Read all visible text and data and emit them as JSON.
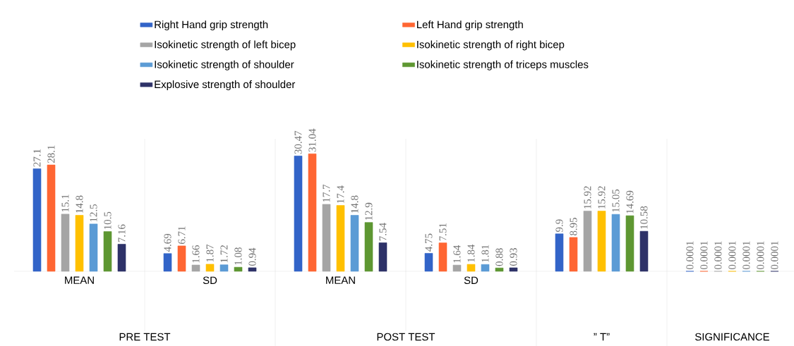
{
  "chart_data": {
    "type": "bar",
    "categories": [
      "MEAN",
      "SD",
      "MEAN",
      "SD",
      null,
      null
    ],
    "series": [
      {
        "name": "Right Hand grip strength",
        "color": "#3264c8",
        "values": [
          27.1,
          4.69,
          30.47,
          4.75,
          9.9,
          0.0001
        ]
      },
      {
        "name": "Left Hand grip strength",
        "color": "#ff6633",
        "values": [
          28.1,
          6.71,
          31.04,
          7.51,
          8.95,
          0.0001
        ]
      },
      {
        "name": "Isokinetic strength of left bicep",
        "color": "#a5a5a5",
        "values": [
          15.1,
          1.66,
          17.7,
          1.64,
          15.92,
          0.0001
        ]
      },
      {
        "name": "Isokinetic strength of right bicep",
        "color": "#ffc000",
        "values": [
          14.8,
          1.87,
          17.4,
          1.84,
          15.92,
          0.0001
        ]
      },
      {
        "name": "Isokinetic strength of shoulder",
        "color": "#5b9bd5",
        "values": [
          12.5,
          1.72,
          14.8,
          1.81,
          15.05,
          0.0001
        ]
      },
      {
        "name": "Isokinetic strength of triceps muscles",
        "color": "#5e9732",
        "values": [
          10.5,
          1.08,
          12.9,
          0.88,
          14.69,
          0.0001
        ]
      },
      {
        "name": "Explosive strength of shoulder",
        "color": "#2e3268",
        "values": [
          7.16,
          0.94,
          7.54,
          0.93,
          10.58,
          0.0001
        ]
      }
    ],
    "ylim": [
      0,
      35
    ],
    "tick_labels": "x",
    "data_labels": true,
    "legend": "top",
    "annotations": [
      "PRE TEST",
      "POST TEST",
      "” T”",
      "SIGNIFICANCE"
    ]
  }
}
